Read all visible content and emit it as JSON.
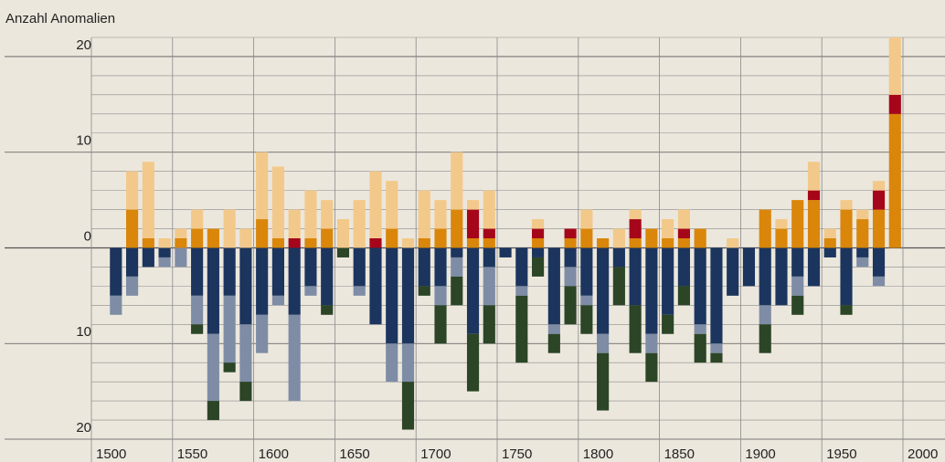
{
  "chart_data": {
    "type": "bar",
    "stacked": true,
    "y_label": "Anzahl Anomalien",
    "x": [
      1510,
      1520,
      1530,
      1540,
      1550,
      1560,
      1570,
      1580,
      1590,
      1600,
      1610,
      1620,
      1630,
      1640,
      1650,
      1660,
      1670,
      1680,
      1690,
      1700,
      1710,
      1720,
      1730,
      1740,
      1750,
      1760,
      1770,
      1780,
      1790,
      1800,
      1810,
      1820,
      1830,
      1840,
      1850,
      1860,
      1870,
      1880,
      1890,
      1900,
      1910,
      1920,
      1930,
      1940,
      1950,
      1960,
      1970,
      1980,
      1990
    ],
    "series": [
      {
        "color": "#d9860a",
        "values": [
          0,
          4,
          1,
          0,
          1,
          2,
          2,
          0,
          0,
          3,
          1,
          0,
          1,
          2,
          0,
          0,
          0,
          2,
          0,
          1,
          2,
          4,
          1,
          1,
          0,
          0,
          1,
          0,
          1,
          2,
          1,
          0,
          1,
          2,
          1,
          1,
          2,
          0,
          0,
          0,
          4,
          2,
          5,
          5,
          1,
          4,
          3,
          4,
          14
        ]
      },
      {
        "color": "#a5061a",
        "values": [
          0,
          0,
          0,
          0,
          0,
          0,
          0,
          0,
          0,
          0,
          0,
          1,
          0,
          0,
          0,
          0,
          1,
          0,
          0,
          0,
          0,
          0,
          3,
          1,
          0,
          0,
          1,
          0,
          1,
          0,
          0,
          0,
          2,
          0,
          0,
          1,
          0,
          0,
          0,
          0,
          0,
          0,
          0,
          1,
          0,
          0,
          0,
          2,
          2
        ]
      },
      {
        "color": "#f2c98a",
        "values": [
          0,
          4,
          8,
          1,
          1,
          2,
          0,
          4,
          2,
          7,
          7.5,
          3,
          5,
          3,
          3,
          5,
          7,
          5,
          1,
          5,
          3,
          6,
          1,
          4,
          0,
          0,
          1,
          0,
          0,
          2,
          0,
          2,
          1,
          0,
          2,
          2,
          0,
          0,
          1,
          0,
          0,
          1,
          0,
          3,
          1,
          1,
          1,
          1,
          6
        ]
      },
      {
        "color": "#1b355e",
        "values": [
          -5,
          -3,
          -2,
          -1,
          0,
          -5,
          -9,
          -5,
          -8,
          -7,
          -5,
          -7,
          -4,
          -6,
          0,
          -4,
          -8,
          -10,
          -10,
          -4,
          -4,
          -1,
          -9,
          -2,
          -1,
          -4,
          -1,
          -8,
          -2,
          -5,
          -9,
          -2,
          -6,
          -9,
          -7,
          -4,
          -8,
          -10,
          -5,
          -4,
          -6,
          -6,
          -3,
          -4,
          -1,
          -6,
          -1,
          -3,
          0
        ]
      },
      {
        "color": "#7e8ca6",
        "values": [
          -2,
          -2,
          0,
          -1,
          -2,
          -3,
          -7,
          -7,
          -6,
          -4,
          -1,
          -9,
          -1,
          0,
          0,
          -1,
          0,
          -4,
          -4,
          0,
          -2,
          -2,
          0,
          -4,
          0,
          -1,
          0,
          -1,
          -2,
          -1,
          -2,
          0,
          0,
          -2,
          0,
          0,
          -1,
          -1,
          0,
          0,
          -2,
          0,
          -2,
          0,
          0,
          0,
          -1,
          -1,
          0
        ]
      },
      {
        "color": "#2b4526",
        "values": [
          0,
          0,
          0,
          0,
          0,
          -1,
          -2,
          -1,
          -2,
          0,
          0,
          0,
          0,
          -1,
          -1,
          0,
          0,
          0,
          -5,
          -1,
          -4,
          -3,
          -6,
          -4,
          0,
          -7,
          -2,
          -2,
          -4,
          -3,
          -6,
          -4,
          -5,
          -3,
          -2,
          -2,
          -3,
          -1,
          0,
          0,
          -3,
          0,
          -2,
          0,
          0,
          -1,
          0,
          0,
          0
        ]
      }
    ],
    "xlim": [
      1500,
      2000
    ],
    "xticks": [
      1500,
      1550,
      1600,
      1650,
      1700,
      1750,
      1800,
      1850,
      1900,
      1950,
      2000
    ],
    "ylim": [
      -20,
      22
    ],
    "yticks": [
      {
        "value": -20,
        "label": "20"
      },
      {
        "value": -10,
        "label": "10"
      },
      0,
      10,
      20
    ],
    "ygrid": [
      -18,
      -16,
      -14,
      -12,
      -8,
      -6,
      -4,
      -2,
      2,
      4,
      6,
      8,
      12,
      14,
      16,
      18,
      22
    ]
  }
}
